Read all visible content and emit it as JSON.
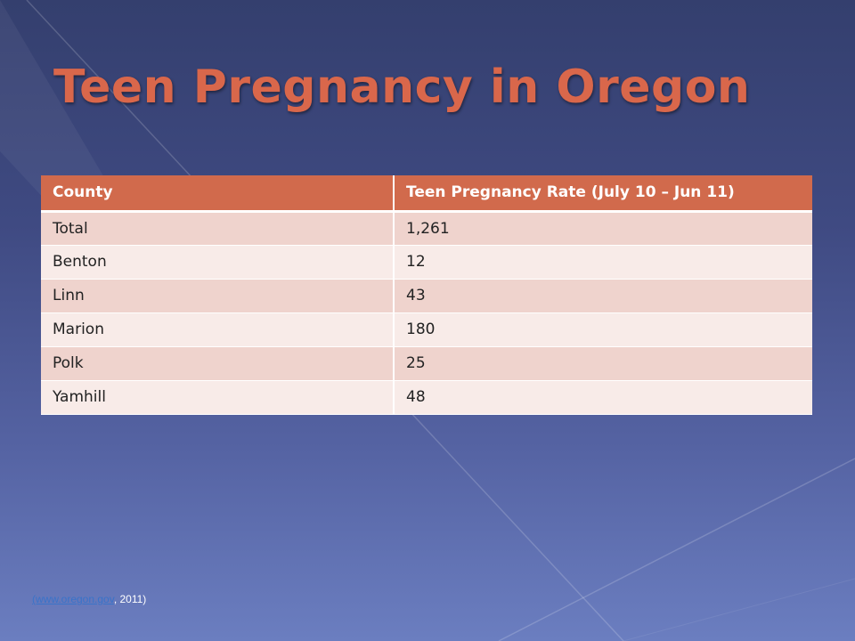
{
  "slide": {
    "title": "Teen Pregnancy in Oregon"
  },
  "table": {
    "headers": [
      "County",
      "Teen Pregnancy Rate (July 10 – Jun 11)"
    ],
    "rows": [
      [
        "Total",
        "1,261"
      ],
      [
        "Benton",
        "12"
      ],
      [
        "Linn",
        "43"
      ],
      [
        "Marion",
        "180"
      ],
      [
        "Polk",
        "25"
      ],
      [
        "Yamhill",
        "48"
      ]
    ]
  },
  "citation": {
    "link_text": "(www.oregon.gov",
    "suffix": ", 2011)"
  },
  "colors": {
    "title": "#d9674b",
    "header_fill": "#d16a4c",
    "row_odd": "#efd3cd",
    "row_even": "#f8ebe8",
    "background_top": "#343f6e",
    "background_bottom": "#6b7ec0",
    "link": "#3a73c9"
  }
}
